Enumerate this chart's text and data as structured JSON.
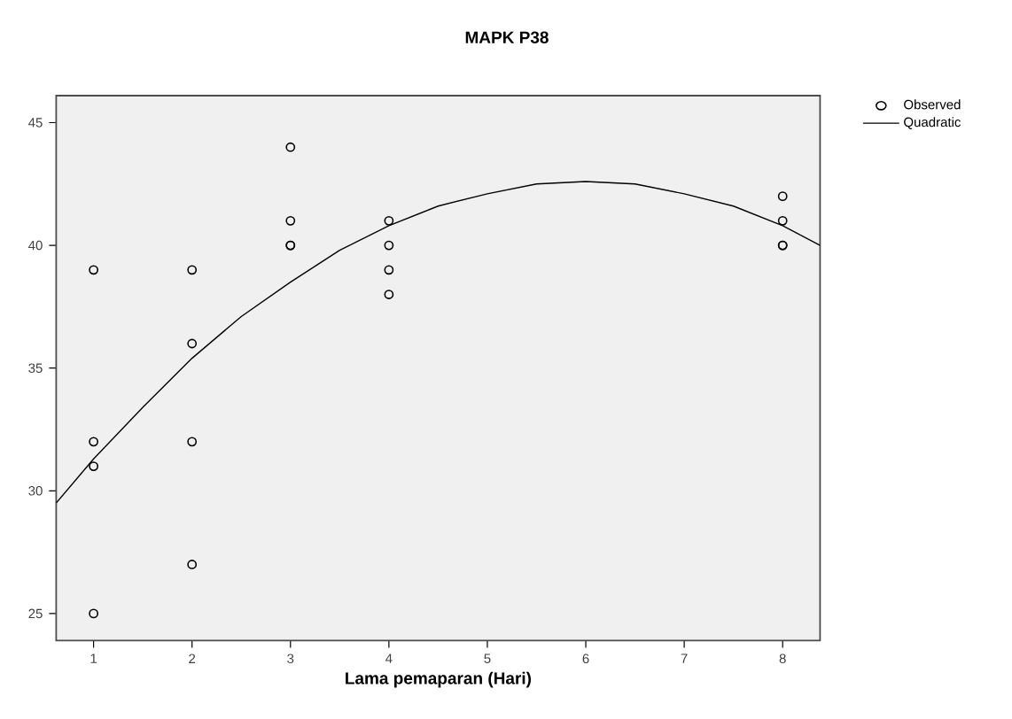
{
  "chart_data": {
    "type": "scatter",
    "title": "MAPK P38",
    "xlabel": "Lama pemaparan (Hari)",
    "xlim": [
      0.62,
      8.38
    ],
    "ylim": [
      23.9,
      46.1
    ],
    "xticks": [
      1,
      2,
      3,
      4,
      5,
      6,
      7,
      8
    ],
    "yticks": [
      25,
      30,
      35,
      40,
      45
    ],
    "grid": false,
    "legend": "top right",
    "series": [
      {
        "name": "Observed",
        "marker": "circle",
        "color": "#000000",
        "x": [
          1,
          1,
          1,
          1,
          2,
          2,
          2,
          2,
          3,
          3,
          3,
          3,
          4,
          4,
          4,
          4,
          8,
          8,
          8,
          8
        ],
        "values": [
          39,
          32,
          31,
          25,
          39,
          36,
          32,
          27,
          44,
          41,
          40,
          40,
          41,
          40,
          39,
          38,
          42,
          41,
          40,
          40
        ]
      },
      {
        "name": "Quadratic",
        "type": "line",
        "marker": "none",
        "line_style": "solid",
        "color": "#000000",
        "x": [
          0.62,
          1,
          1.5,
          2,
          2.5,
          3,
          3.5,
          4,
          4.5,
          5,
          5.5,
          6,
          6.5,
          7,
          7.5,
          8,
          8.38
        ],
        "values": [
          29.5,
          31.3,
          33.4,
          35.4,
          37.1,
          38.5,
          39.8,
          40.8,
          41.6,
          42.1,
          42.5,
          42.6,
          42.5,
          42.1,
          41.6,
          40.8,
          40.0
        ]
      }
    ]
  }
}
